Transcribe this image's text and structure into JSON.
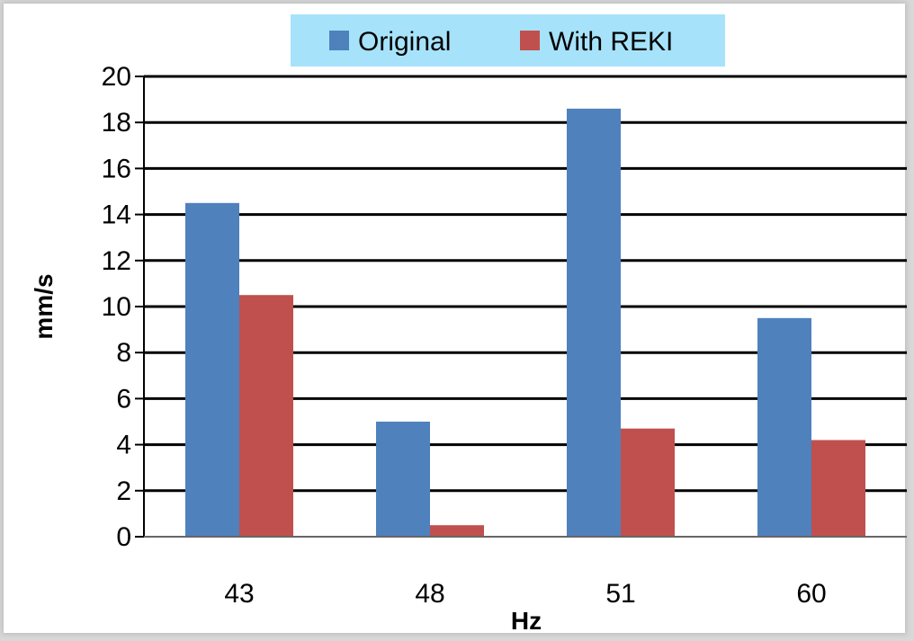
{
  "chart_data": {
    "type": "bar",
    "categories": [
      "43",
      "48",
      "51",
      "60"
    ],
    "series": [
      {
        "name": "Original",
        "values": [
          14.5,
          5.0,
          18.6,
          9.5
        ],
        "color": "#4f81bd"
      },
      {
        "name": "With REKI",
        "values": [
          10.5,
          0.5,
          4.7,
          4.2
        ],
        "color": "#c0504d"
      }
    ],
    "xlabel": "Hz",
    "ylabel": "mm/s",
    "ylim": [
      0,
      20
    ],
    "yticks": [
      0,
      2,
      4,
      6,
      8,
      10,
      12,
      14,
      16,
      18,
      20
    ],
    "grid": true,
    "legend": "top-center",
    "legend_background": "#a6e3fb"
  }
}
